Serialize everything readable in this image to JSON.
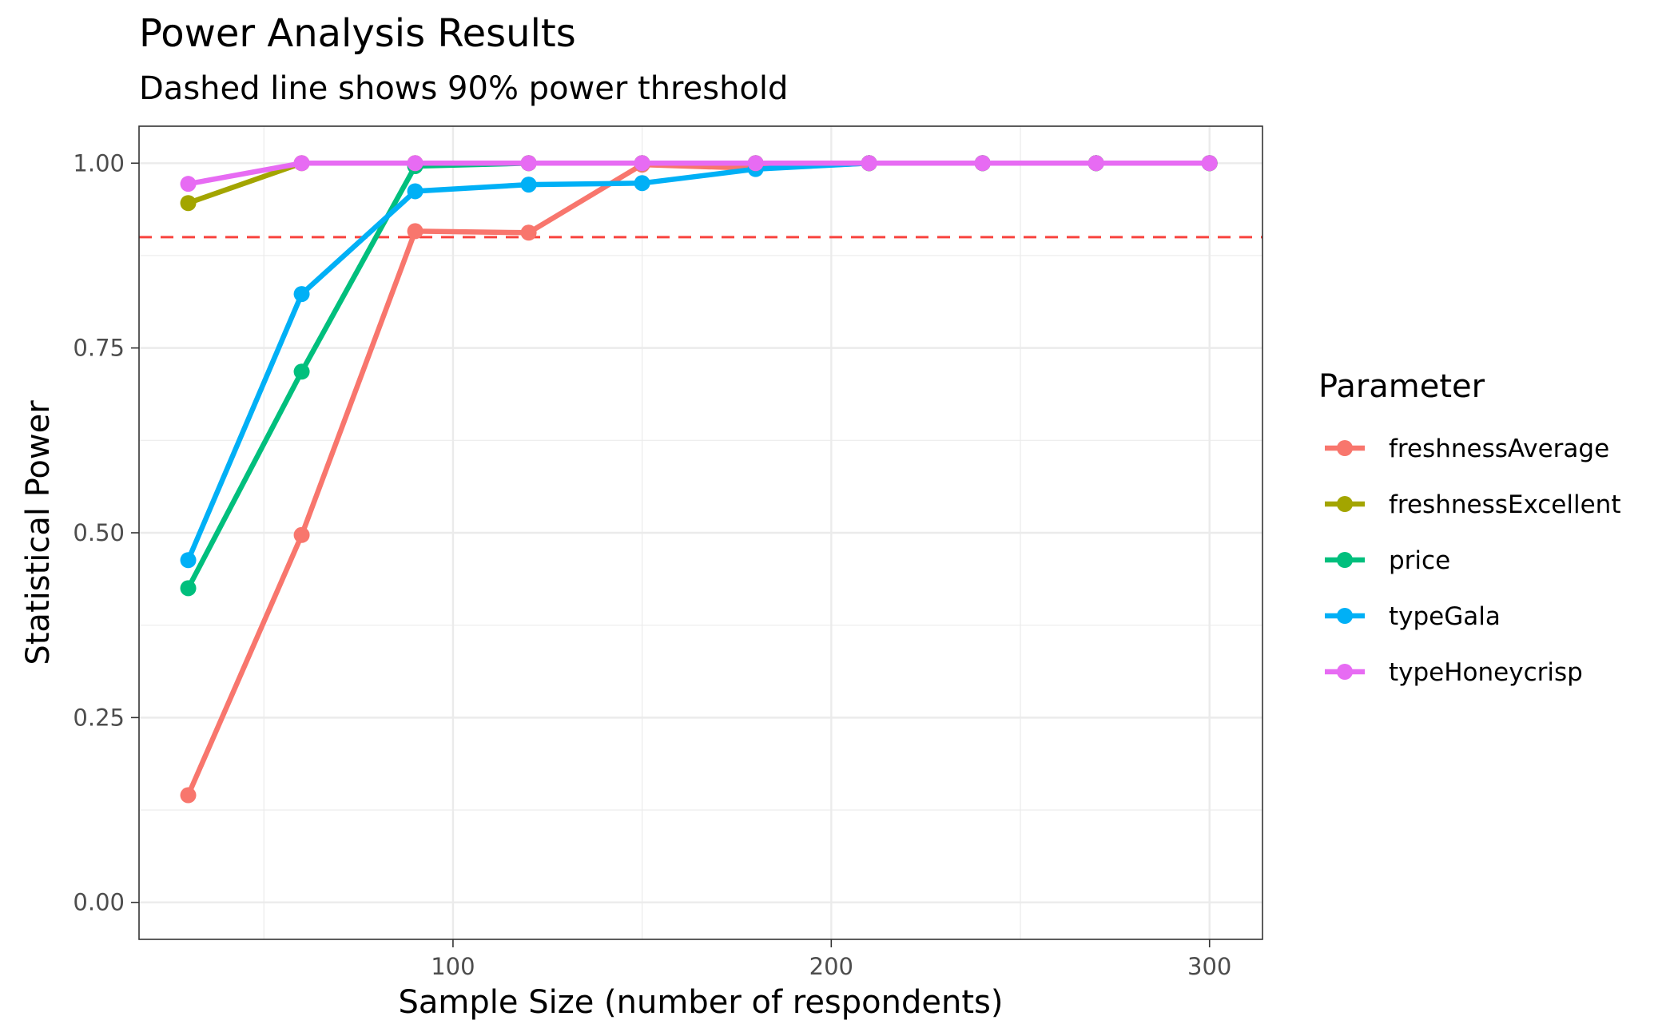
{
  "chart_data": {
    "type": "line",
    "title": "Power Analysis Results",
    "subtitle": "Dashed line shows 90% power threshold",
    "xlabel": "Sample Size (number of respondents)",
    "ylabel": "Statistical Power",
    "xlim": [
      17,
      314
    ],
    "ylim": [
      -0.05,
      1.05
    ],
    "x_ticks": [
      100,
      200,
      300
    ],
    "y_ticks": [
      0.0,
      0.25,
      0.5,
      0.75,
      1.0
    ],
    "y_tick_labels": [
      "0.00",
      "0.25",
      "0.50",
      "0.75",
      "1.00"
    ],
    "threshold": {
      "value": 0.9,
      "color": "#F8443F",
      "style": "dashed"
    },
    "grid": true,
    "legend": {
      "title": "Parameter",
      "position": "right"
    },
    "x": [
      30,
      60,
      90,
      120,
      150,
      180,
      210,
      240,
      270,
      300
    ],
    "series": [
      {
        "name": "freshnessAverage",
        "color": "#F8766D",
        "values": [
          0.145,
          0.497,
          0.908,
          0.906,
          0.998,
          0.993,
          1.0,
          1.0,
          1.0,
          1.0
        ]
      },
      {
        "name": "price",
        "color": "#00BF7D",
        "values": [
          0.425,
          0.718,
          0.996,
          1.0,
          1.0,
          1.0,
          1.0,
          1.0,
          1.0,
          1.0
        ]
      },
      {
        "name": "typeGala",
        "color": "#00B0F6",
        "values": [
          0.463,
          0.823,
          0.962,
          0.971,
          0.973,
          0.992,
          1.0,
          1.0,
          1.0,
          1.0
        ]
      },
      {
        "name": "freshnessExcellent",
        "color": "#A3A500",
        "values": [
          0.946,
          1.0,
          1.0,
          1.0,
          1.0,
          1.0,
          1.0,
          1.0,
          1.0,
          1.0
        ]
      },
      {
        "name": "typeHoneycrisp",
        "color": "#E76BF3",
        "values": [
          0.972,
          1.0,
          1.0,
          1.0,
          1.0,
          1.0,
          1.0,
          1.0,
          1.0,
          1.0
        ]
      }
    ],
    "legend_order": [
      "freshnessAverage",
      "freshnessExcellent",
      "price",
      "typeGala",
      "typeHoneycrisp"
    ]
  }
}
